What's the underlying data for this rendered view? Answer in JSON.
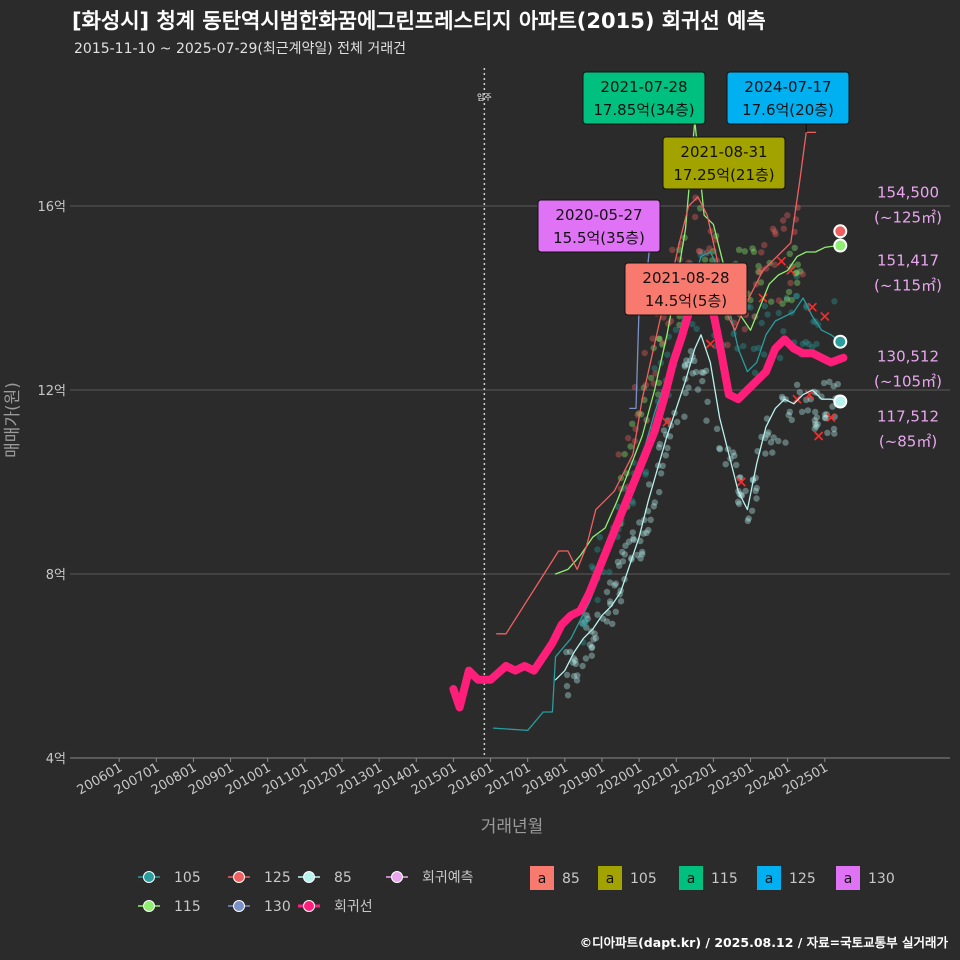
{
  "header": {
    "title": "[화성시] 청계 동탄역시범한화꿈에그린프레스티지 아파트(2015) 회귀선 예측",
    "subtitle": "2015-11-10 ~ 2025-07-29(최근계약일) 전체 거래건",
    "credit": "©디아파트(dapt.kr) / 2025.08.12 / 자료=국토교통부 실거래가"
  },
  "colors": {
    "background": "#2b2b2b",
    "grid": "#5a5a5a",
    "axis_text": "#c8c8c8",
    "s105": "#2a9d9d",
    "s115": "#8fef70",
    "s125": "#f06060",
    "s130": "#7a90c8",
    "s85": "#b8f2ee",
    "regression": "#ff1f7a",
    "forecast": "#e9a6ef",
    "ann85": "#f87a6e",
    "ann105": "#a3a300",
    "ann115": "#00c080",
    "ann125": "#00b0f0",
    "ann130": "#e073f5",
    "cancel": "#ff2a2a"
  },
  "chart_data": {
    "type": "line",
    "xlabel": "거래년월",
    "ylabel": "매매가(원)",
    "x_range": [
      "2005-01",
      "2026-12"
    ],
    "ylim": [
      4,
      19
    ],
    "y_ticks": [
      {
        "value": 4,
        "label": "4억"
      },
      {
        "value": 8,
        "label": "8억"
      },
      {
        "value": 12,
        "label": "12억"
      },
      {
        "value": 16,
        "label": "16억"
      }
    ],
    "x_ticks": [
      "200601",
      "200701",
      "200801",
      "200901",
      "201001",
      "201101",
      "201201",
      "201301",
      "201401",
      "201501",
      "201601",
      "201701",
      "201801",
      "201901",
      "202001",
      "202101",
      "202201",
      "202301",
      "202401",
      "202501"
    ],
    "vline": {
      "date": "2015-11",
      "label": "입주"
    },
    "series": [
      {
        "name": "85",
        "key": "s85",
        "width": 1.3,
        "points": [
          [
            "2017-10",
            5.7
          ],
          [
            "2018-01",
            5.9
          ],
          [
            "2018-04",
            6.3
          ],
          [
            "2018-07",
            6.6
          ],
          [
            "2018-10",
            6.8
          ],
          [
            "2019-01",
            7.1
          ],
          [
            "2019-04",
            7.3
          ],
          [
            "2019-07",
            7.6
          ],
          [
            "2019-10",
            8.2
          ],
          [
            "2020-01",
            8.8
          ],
          [
            "2020-04",
            9.6
          ],
          [
            "2020-07",
            10.3
          ],
          [
            "2020-10",
            11.0
          ],
          [
            "2021-01",
            11.6
          ],
          [
            "2021-04",
            12.2
          ],
          [
            "2021-07",
            12.9
          ],
          [
            "2021-09",
            13.2
          ],
          [
            "2021-12",
            12.6
          ],
          [
            "2022-03",
            11.4
          ],
          [
            "2022-06",
            10.6
          ],
          [
            "2022-09",
            9.8
          ],
          [
            "2022-12",
            9.4
          ],
          [
            "2023-03",
            10.4
          ],
          [
            "2023-06",
            11.2
          ],
          [
            "2023-09",
            11.6
          ],
          [
            "2023-12",
            11.8
          ],
          [
            "2024-03",
            11.7
          ],
          [
            "2024-06",
            11.9
          ],
          [
            "2024-09",
            12.0
          ],
          [
            "2024-12",
            11.8
          ],
          [
            "2025-03",
            11.8
          ],
          [
            "2025-06",
            11.75
          ]
        ]
      },
      {
        "name": "105",
        "key": "s105",
        "width": 1.3,
        "points": [
          [
            "2016-02",
            4.65
          ],
          [
            "2017-01",
            4.6
          ],
          [
            "2017-06",
            5.0
          ],
          [
            "2017-09",
            5.0
          ],
          [
            "2017-10",
            6.2
          ],
          [
            "2018-03",
            6.6
          ],
          [
            "2018-06",
            7.0
          ],
          [
            "2018-09",
            7.4
          ],
          [
            "2018-12",
            7.9
          ],
          [
            "2019-03",
            8.5
          ],
          [
            "2019-06",
            8.9
          ],
          [
            "2019-09",
            9.6
          ],
          [
            "2019-12",
            10.3
          ],
          [
            "2020-03",
            10.8
          ],
          [
            "2020-06",
            11.5
          ],
          [
            "2020-09",
            12.1
          ],
          [
            "2020-12",
            12.7
          ],
          [
            "2021-03",
            13.5
          ],
          [
            "2021-06",
            14.2
          ],
          [
            "2021-09",
            14.9
          ],
          [
            "2021-12",
            15.0
          ],
          [
            "2022-03",
            14.6
          ],
          [
            "2022-06",
            13.8
          ],
          [
            "2022-09",
            12.9
          ],
          [
            "2022-12",
            12.4
          ],
          [
            "2023-03",
            12.6
          ],
          [
            "2023-06",
            13.2
          ],
          [
            "2023-09",
            13.5
          ],
          [
            "2023-12",
            13.6
          ],
          [
            "2024-03",
            13.7
          ],
          [
            "2024-06",
            14.0
          ],
          [
            "2024-09",
            13.6
          ],
          [
            "2024-12",
            13.3
          ],
          [
            "2025-03",
            13.2
          ],
          [
            "2025-06",
            13.05
          ]
        ]
      },
      {
        "name": "115",
        "key": "s115",
        "width": 1.3,
        "points": [
          [
            "2017-10",
            8.0
          ],
          [
            "2018-02",
            8.1
          ],
          [
            "2018-06",
            8.4
          ],
          [
            "2018-10",
            8.8
          ],
          [
            "2019-02",
            9.0
          ],
          [
            "2019-06",
            9.6
          ],
          [
            "2019-10",
            10.3
          ],
          [
            "2020-02",
            11.0
          ],
          [
            "2020-06",
            12.0
          ],
          [
            "2020-10",
            13.2
          ],
          [
            "2021-01",
            14.3
          ],
          [
            "2021-04",
            15.5
          ],
          [
            "2021-07",
            17.85
          ],
          [
            "2021-10",
            15.8
          ],
          [
            "2022-01",
            15.6
          ],
          [
            "2022-04",
            14.8
          ],
          [
            "2022-07",
            14.2
          ],
          [
            "2022-10",
            13.6
          ],
          [
            "2023-01",
            13.3
          ],
          [
            "2023-04",
            13.8
          ],
          [
            "2023-07",
            14.3
          ],
          [
            "2023-10",
            14.5
          ],
          [
            "2024-01",
            14.6
          ],
          [
            "2024-04",
            14.9
          ],
          [
            "2024-07",
            15.0
          ],
          [
            "2024-10",
            15.0
          ],
          [
            "2025-01",
            15.1
          ],
          [
            "2025-05",
            15.14
          ]
        ]
      },
      {
        "name": "125",
        "key": "s125",
        "width": 1.3,
        "points": [
          [
            "2016-03",
            6.7
          ],
          [
            "2016-06",
            6.7
          ],
          [
            "2017-11",
            8.5
          ],
          [
            "2018-02",
            8.5
          ],
          [
            "2018-05",
            8.1
          ],
          [
            "2018-08",
            8.6
          ],
          [
            "2018-11",
            9.4
          ],
          [
            "2019-02",
            9.6
          ],
          [
            "2019-05",
            9.8
          ],
          [
            "2019-08",
            10.2
          ],
          [
            "2019-11",
            10.6
          ],
          [
            "2020-02",
            11.8
          ],
          [
            "2020-05",
            12.7
          ],
          [
            "2020-08",
            13.6
          ],
          [
            "2020-11",
            14.3
          ],
          [
            "2021-02",
            15.2
          ],
          [
            "2021-05",
            16.0
          ],
          [
            "2021-08",
            16.2
          ],
          [
            "2021-11",
            15.8
          ],
          [
            "2022-02",
            14.9
          ],
          [
            "2022-05",
            13.7
          ],
          [
            "2022-08",
            13.3
          ],
          [
            "2022-11",
            13.8
          ],
          [
            "2023-02",
            14.2
          ],
          [
            "2023-05",
            14.6
          ],
          [
            "2023-08",
            14.8
          ],
          [
            "2023-11",
            15.0
          ],
          [
            "2024-02",
            15.2
          ],
          [
            "2024-05",
            16.6
          ],
          [
            "2024-07",
            17.6
          ],
          [
            "2024-10",
            17.6
          ]
        ]
      },
      {
        "name": "130",
        "key": "s130",
        "width": 1.3,
        "points": [
          [
            "2019-10",
            11.6
          ],
          [
            "2019-12",
            11.6
          ],
          [
            "2020-01",
            13.8
          ],
          [
            "2020-03",
            14.2
          ],
          [
            "2020-05",
            15.5
          ],
          [
            "2020-07",
            15.5
          ]
        ]
      },
      {
        "name": "회귀선",
        "key": "regression",
        "width": 8,
        "points": [
          [
            "2015-01",
            5.5
          ],
          [
            "2015-03",
            5.1
          ],
          [
            "2015-06",
            5.9
          ],
          [
            "2015-09",
            5.7
          ],
          [
            "2016-01",
            5.7
          ],
          [
            "2016-06",
            6.0
          ],
          [
            "2016-09",
            5.9
          ],
          [
            "2016-12",
            6.0
          ],
          [
            "2017-03",
            5.9
          ],
          [
            "2017-06",
            6.2
          ],
          [
            "2017-09",
            6.5
          ],
          [
            "2017-12",
            6.9
          ],
          [
            "2018-03",
            7.1
          ],
          [
            "2018-06",
            7.2
          ],
          [
            "2018-09",
            7.6
          ],
          [
            "2018-12",
            8.1
          ],
          [
            "2019-03",
            8.6
          ],
          [
            "2019-06",
            9.1
          ],
          [
            "2019-09",
            9.6
          ],
          [
            "2019-12",
            10.1
          ],
          [
            "2020-03",
            10.6
          ],
          [
            "2020-06",
            11.1
          ],
          [
            "2020-09",
            11.8
          ],
          [
            "2020-12",
            12.6
          ],
          [
            "2021-03",
            13.2
          ],
          [
            "2021-06",
            13.9
          ],
          [
            "2021-09",
            14.4
          ],
          [
            "2021-12",
            14.0
          ],
          [
            "2022-03",
            13.0
          ],
          [
            "2022-06",
            11.9
          ],
          [
            "2022-09",
            11.8
          ],
          [
            "2022-12",
            12.0
          ],
          [
            "2023-03",
            12.2
          ],
          [
            "2023-06",
            12.4
          ],
          [
            "2023-09",
            12.9
          ],
          [
            "2023-12",
            13.1
          ],
          [
            "2024-03",
            12.9
          ],
          [
            "2024-06",
            12.8
          ],
          [
            "2024-09",
            12.8
          ],
          [
            "2024-12",
            12.7
          ],
          [
            "2025-03",
            12.6
          ],
          [
            "2025-07",
            12.7
          ]
        ]
      }
    ],
    "scatter_clouds": [
      {
        "key": "s85",
        "center": [
          [
            "2018-01",
            5.8
          ],
          [
            "2018-07",
            6.4
          ],
          [
            "2019-01",
            7.1
          ],
          [
            "2019-07",
            7.8
          ],
          [
            "2020-01",
            8.8
          ],
          [
            "2020-07",
            10.2
          ],
          [
            "2021-01",
            11.4
          ],
          [
            "2021-07",
            12.6
          ],
          [
            "2022-07",
            10.4
          ],
          [
            "2023-01",
            9.6
          ],
          [
            "2023-07",
            11.0
          ],
          [
            "2024-07",
            11.8
          ],
          [
            "2025-01",
            11.7
          ],
          [
            "2025-06",
            11.5
          ]
        ],
        "spread": 0.6
      },
      {
        "key": "s105",
        "center": [
          [
            "2018-06",
            7.0
          ],
          [
            "2019-06",
            8.9
          ],
          [
            "2020-06",
            11.6
          ],
          [
            "2021-06",
            14.3
          ],
          [
            "2022-06",
            13.6
          ],
          [
            "2023-06",
            13.1
          ],
          [
            "2024-06",
            13.7
          ],
          [
            "2025-06",
            13.0
          ]
        ],
        "spread": 0.9
      },
      {
        "key": "s115",
        "center": [
          [
            "2019-06",
            9.6
          ],
          [
            "2020-06",
            12.1
          ],
          [
            "2021-06",
            15.4
          ],
          [
            "2022-06",
            14.3
          ],
          [
            "2023-06",
            14.2
          ],
          [
            "2024-06",
            14.8
          ]
        ],
        "spread": 0.9
      },
      {
        "key": "s125",
        "center": [
          [
            "2019-06",
            9.9
          ],
          [
            "2020-06",
            12.8
          ],
          [
            "2021-06",
            15.7
          ],
          [
            "2022-06",
            13.8
          ],
          [
            "2023-06",
            14.5
          ],
          [
            "2024-06",
            15.4
          ]
        ],
        "spread": 0.9
      }
    ],
    "cancel_marks": [
      [
        "2020-10",
        11.3
      ],
      [
        "2021-12",
        13.0
      ],
      [
        "2022-10",
        10.0
      ],
      [
        "2023-05",
        14.0
      ],
      [
        "2023-11",
        14.8
      ],
      [
        "2024-02",
        14.6
      ],
      [
        "2024-04",
        11.8
      ],
      [
        "2024-08",
        11.9
      ],
      [
        "2024-09",
        13.8
      ],
      [
        "2024-11",
        11.0
      ],
      [
        "2025-01",
        13.6
      ],
      [
        "2025-03",
        11.4
      ]
    ],
    "end_markers": [
      {
        "key": "s125",
        "date": "2025-06",
        "value": 15.45,
        "price": "154,500",
        "area": "(~125㎡)",
        "label_pos": "above"
      },
      {
        "key": "s115",
        "date": "2025-06",
        "value": 15.14,
        "price": "151,417",
        "area": "(~115㎡)",
        "label_pos": "below"
      },
      {
        "key": "s105",
        "date": "2025-06",
        "value": 13.05,
        "price": "130,512",
        "area": "(~105㎡)",
        "label_pos": "below"
      },
      {
        "key": "s85",
        "date": "2025-06",
        "value": 11.75,
        "price": "117,512",
        "area": "(~85㎡)",
        "label_pos": "below"
      }
    ],
    "annotations": [
      {
        "key": "ann115",
        "date_text": "2021-07-28",
        "price_text": "17.85억(34층)",
        "date": "2021-07",
        "value": 17.85
      },
      {
        "key": "ann125",
        "date_text": "2024-07-17",
        "price_text": "17.6억(20층)",
        "date": "2024-07",
        "value": 17.6
      },
      {
        "key": "ann105",
        "date_text": "2021-08-31",
        "price_text": "17.25억(21층)",
        "date": "2021-08",
        "value": 17.25
      },
      {
        "key": "ann130",
        "date_text": "2020-05-27",
        "price_text": "15.5억(35층)",
        "date": "2020-05",
        "value": 15.5
      },
      {
        "key": "ann85",
        "date_text": "2021-08-28",
        "price_text": "14.5억(5층)",
        "date": "2021-08",
        "value": 14.5
      }
    ]
  },
  "legend": {
    "lines": [
      {
        "label": "105",
        "key": "s105"
      },
      {
        "label": "125",
        "key": "s125"
      },
      {
        "label": "85",
        "key": "s85"
      },
      {
        "label": "회귀예측",
        "key": "forecast"
      },
      {
        "label": "115",
        "key": "s115"
      },
      {
        "label": "130",
        "key": "s130"
      },
      {
        "label": "회귀선",
        "key": "regression"
      }
    ],
    "boxes_glyph": "a",
    "boxes": [
      {
        "label": "85",
        "key": "ann85"
      },
      {
        "label": "105",
        "key": "ann105"
      },
      {
        "label": "115",
        "key": "ann115"
      },
      {
        "label": "125",
        "key": "ann125"
      },
      {
        "label": "130",
        "key": "ann130"
      }
    ]
  }
}
